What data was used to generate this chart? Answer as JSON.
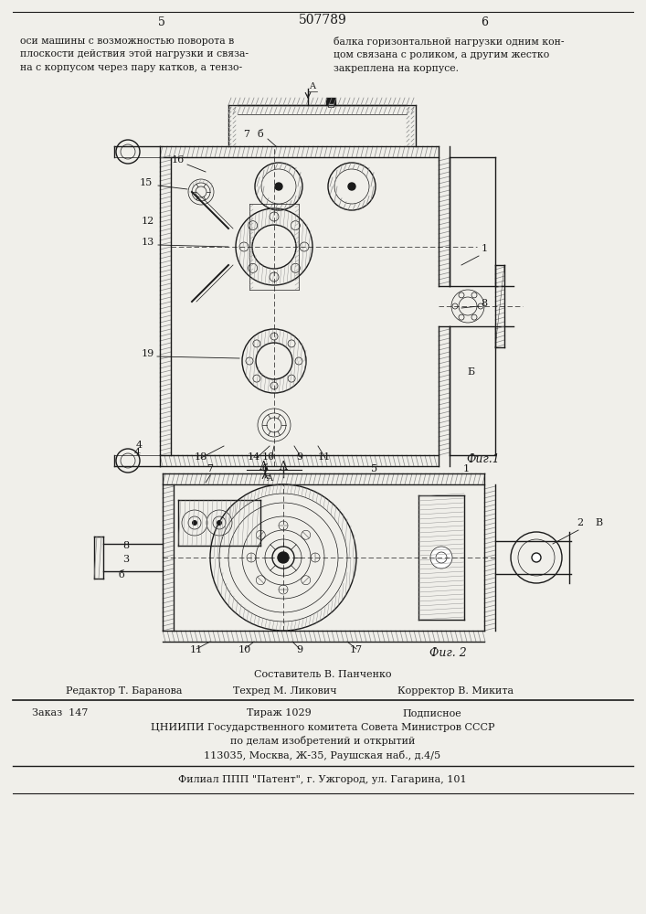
{
  "page_number_left": "5",
  "page_number_right": "6",
  "patent_number": "507789",
  "text_left": "оси машины с возможностью поворота в\nплоскости действия этой нагрузки и связа-\nна с корпусом через пару катков, а тензо-",
  "text_right": "балка горизонтальной нагрузки одним кон-\nцом связана с роликом, а другим жестко\nзакреплена на корпусе.",
  "fig1_label": "Фиг.1",
  "fig2_label": "Фиг. 2",
  "composer": "Составитель В. Панченко",
  "editor": "Редактор Т. Баранова",
  "techred": "Техред М. Ликович",
  "corrector": "Корректор В. Микита",
  "order": "Заказ  147",
  "tirazh": "Тираж 1029",
  "podpisnoe": "Подписное",
  "org_line1": "ЦНИИПИ Государственного комитета Совета Министров СССР",
  "org_line2": "по делам изобретений и открытий",
  "org_line3": "113035, Москва, Ж-35, Раушская наб., д.4/5",
  "filial": "Филиал ППП \"Патент\", г. Ужгород, ул. Гагарина, 101",
  "bg_color": "#f0efea",
  "line_color": "#1a1a1a"
}
